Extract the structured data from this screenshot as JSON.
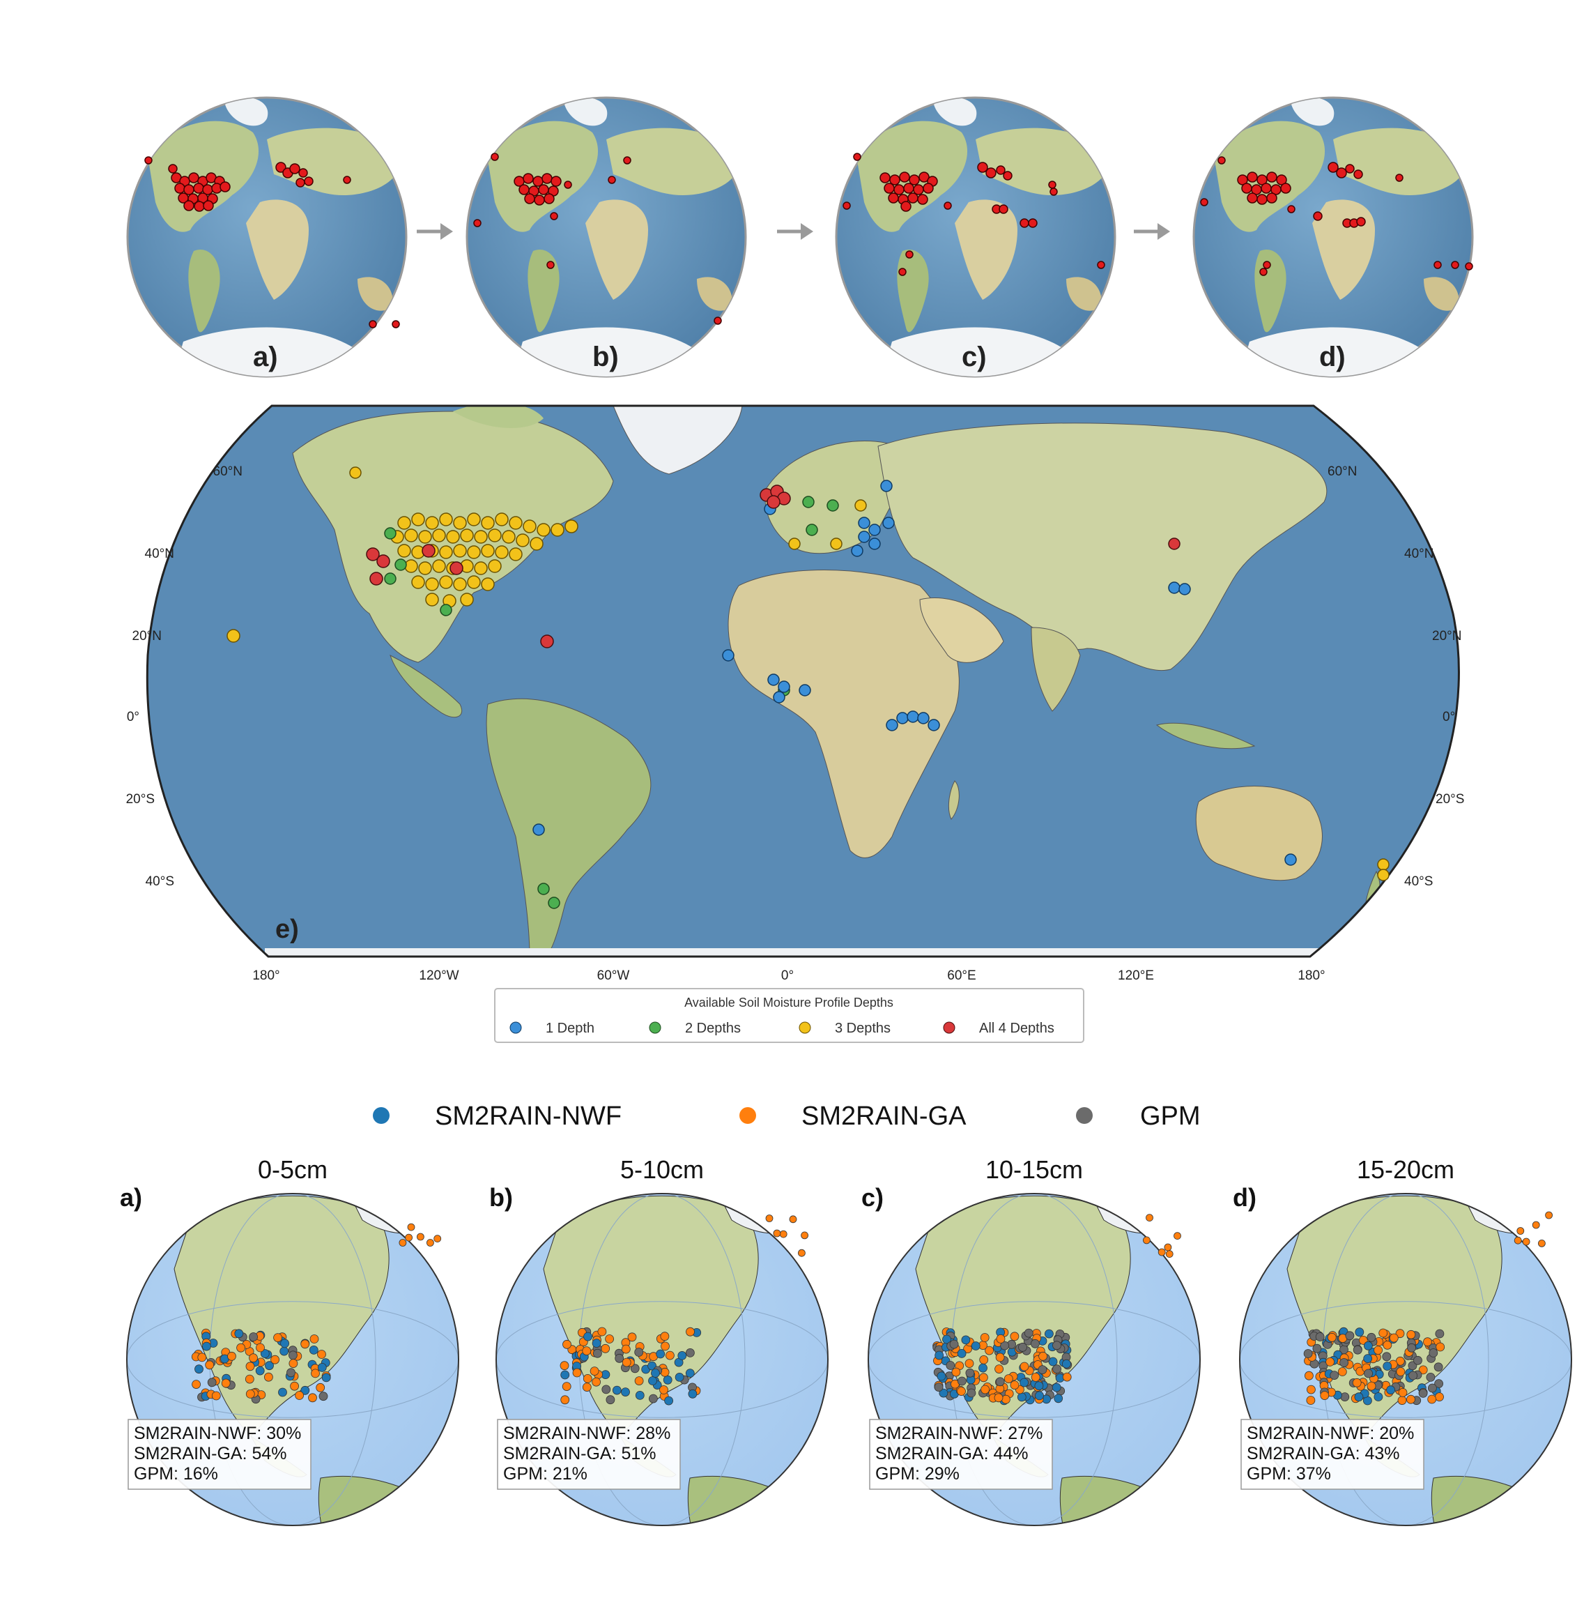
{
  "top_globes": {
    "panels": [
      {
        "label": "a)"
      },
      {
        "label": "b)"
      },
      {
        "label": "c)"
      },
      {
        "label": "d)"
      }
    ]
  },
  "world_map": {
    "panel_label": "e)",
    "lat_labels": [
      "60°N",
      "40°N",
      "20°N",
      "0°",
      "20°S",
      "40°S"
    ],
    "lon_labels": [
      "180°",
      "120°W",
      "60°W",
      "0°",
      "60°E",
      "120°E",
      "180°"
    ],
    "legend": {
      "title": "Available Soil Moisture Profile Depths",
      "items": [
        {
          "label": "1 Depth",
          "color": "#3b8fd8"
        },
        {
          "label": "2 Depths",
          "color": "#4caf50"
        },
        {
          "label": "3 Depths",
          "color": "#f2c21a"
        },
        {
          "label": "All 4 Depths",
          "color": "#d9383a"
        }
      ]
    }
  },
  "bottom": {
    "legend": [
      {
        "label": "SM2RAIN-NWF",
        "color": "#1f77b4"
      },
      {
        "label": "SM2RAIN-GA",
        "color": "#ff7f0e"
      },
      {
        "label": "GPM",
        "color": "#6b6b6b"
      }
    ],
    "panels": [
      {
        "label": "a)",
        "title": "0-5cm",
        "stats": [
          "SM2RAIN-NWF: 30%",
          "SM2RAIN-GA: 54%",
          "GPM: 16%"
        ]
      },
      {
        "label": "b)",
        "title": "5-10cm",
        "stats": [
          "SM2RAIN-NWF: 28%",
          "SM2RAIN-GA: 51%",
          "GPM: 21%"
        ]
      },
      {
        "label": "c)",
        "title": "10-15cm",
        "stats": [
          "SM2RAIN-NWF: 27%",
          "SM2RAIN-GA: 44%",
          "GPM: 29%"
        ]
      },
      {
        "label": "d)",
        "title": "15-20cm",
        "stats": [
          "SM2RAIN-NWF: 20%",
          "SM2RAIN-GA: 43%",
          "GPM: 37%"
        ]
      }
    ]
  }
}
